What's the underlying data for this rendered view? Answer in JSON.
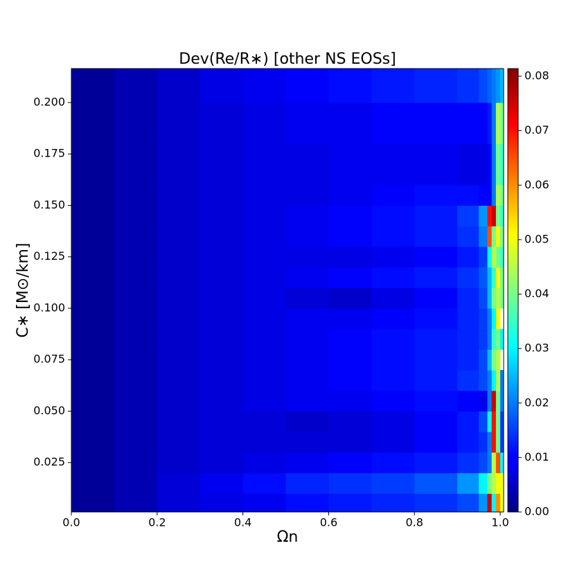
{
  "chart_data": {
    "type": "heatmap",
    "title": "Dev(Re/R∗) [other NS EOSs]",
    "x_label": "Ωn",
    "y_label": "C∗ [M⊙/km]",
    "colormap": "jet",
    "x_edges": [
      0,
      0.1,
      0.2,
      0.3,
      0.4,
      0.5,
      0.6,
      0.7,
      0.8,
      0.9,
      0.95,
      0.97,
      0.98,
      0.99,
      1.0,
      1.008
    ],
    "y_edges": [
      0.001,
      0.01,
      0.02,
      0.03,
      0.04,
      0.05,
      0.06,
      0.07,
      0.08,
      0.09,
      0.1,
      0.11,
      0.12,
      0.13,
      0.14,
      0.15,
      0.16,
      0.18,
      0.2,
      0.2165
    ],
    "values": [
      [
        0.002,
        0.004,
        0.007,
        0.008,
        0.009,
        0.011,
        0.012,
        0.013,
        0.014,
        0.016,
        0.022,
        0.075,
        0.03,
        0.06,
        0.05
      ],
      [
        0.002,
        0.004,
        0.007,
        0.009,
        0.011,
        0.013,
        0.014,
        0.015,
        0.017,
        0.022,
        0.03,
        0.04,
        0.045,
        0.05,
        0.05
      ],
      [
        0.002,
        0.004,
        0.006,
        0.007,
        0.008,
        0.009,
        0.01,
        0.011,
        0.012,
        0.014,
        0.016,
        0.02,
        0.045,
        0.065,
        0.03
      ],
      [
        0.002,
        0.004,
        0.006,
        0.007,
        0.007,
        0.007,
        0.007,
        0.008,
        0.01,
        0.012,
        0.014,
        0.02,
        0.07,
        0.04,
        0.015
      ],
      [
        0.002,
        0.004,
        0.006,
        0.007,
        0.007,
        0.006,
        0.007,
        0.008,
        0.01,
        0.012,
        0.016,
        0.03,
        0.07,
        0.04,
        0.015
      ],
      [
        0.002,
        0.004,
        0.006,
        0.007,
        0.008,
        0.009,
        0.009,
        0.01,
        0.011,
        0.01,
        0.009,
        0.02,
        0.075,
        0.04,
        0.02
      ],
      [
        0.002,
        0.004,
        0.006,
        0.007,
        0.008,
        0.009,
        0.01,
        0.011,
        0.012,
        0.014,
        0.016,
        0.02,
        0.03,
        0.045,
        0.02
      ],
      [
        0.002,
        0.004,
        0.006,
        0.007,
        0.008,
        0.009,
        0.01,
        0.011,
        0.012,
        0.013,
        0.016,
        0.025,
        0.04,
        0.045,
        null
      ],
      [
        0.002,
        0.004,
        0.006,
        0.007,
        0.008,
        0.009,
        0.01,
        0.011,
        0.012,
        0.013,
        0.015,
        0.02,
        0.035,
        0.04,
        0.03
      ],
      [
        0.002,
        0.004,
        0.006,
        0.007,
        0.008,
        0.009,
        0.009,
        0.01,
        0.011,
        0.013,
        0.015,
        0.02,
        0.03,
        0.05,
        null
      ],
      [
        0.002,
        0.004,
        0.006,
        0.007,
        0.008,
        0.007,
        0.006,
        0.008,
        0.01,
        0.013,
        0.016,
        0.025,
        0.04,
        0.045,
        0.04
      ],
      [
        0.002,
        0.004,
        0.006,
        0.007,
        0.008,
        0.009,
        0.01,
        0.011,
        0.012,
        0.014,
        0.017,
        0.025,
        0.035,
        0.05,
        0.04
      ],
      [
        0.002,
        0.004,
        0.006,
        0.007,
        0.008,
        0.008,
        0.008,
        0.009,
        0.01,
        0.012,
        0.015,
        0.03,
        0.045,
        0.04,
        0.035
      ],
      [
        0.002,
        0.004,
        0.006,
        0.007,
        0.008,
        0.009,
        0.01,
        0.011,
        0.012,
        0.014,
        0.02,
        0.065,
        0.04,
        0.05,
        0.04
      ],
      [
        0.002,
        0.004,
        0.006,
        0.007,
        0.008,
        0.009,
        0.01,
        0.011,
        0.012,
        0.015,
        0.022,
        0.07,
        0.075,
        0.04,
        0.035
      ],
      [
        0.002,
        0.004,
        0.006,
        0.007,
        0.008,
        0.008,
        0.009,
        0.01,
        0.011,
        0.011,
        0.01,
        0.01,
        0.02,
        0.045,
        0.04
      ],
      [
        0.002,
        0.004,
        0.006,
        0.007,
        0.008,
        0.008,
        0.009,
        0.009,
        0.009,
        0.008,
        0.008,
        0.01,
        0.02,
        0.04,
        0.035
      ],
      [
        0.002,
        0.004,
        0.006,
        0.007,
        0.008,
        0.009,
        0.009,
        0.01,
        0.01,
        0.01,
        0.01,
        0.012,
        0.02,
        0.045,
        0.04
      ],
      [
        0.002,
        0.004,
        0.006,
        0.008,
        0.009,
        0.01,
        0.011,
        0.012,
        0.013,
        0.014,
        0.016,
        0.018,
        0.02,
        0.022,
        0.025
      ]
    ],
    "xlim": [
      0,
      1.008
    ],
    "ylim": [
      0.001,
      0.2165
    ],
    "clim": [
      0,
      0.0814
    ],
    "xticks": [
      {
        "value": 0,
        "label": "0.0"
      },
      0.2,
      0.4,
      0.6,
      0.8,
      {
        "value": 1,
        "label": "1.0"
      }
    ],
    "yticks": [
      0.025,
      {
        "value": 0.05,
        "label": "0.050"
      },
      0.075,
      {
        "value": 0.1,
        "label": "0.100"
      },
      0.125,
      {
        "value": 0.15,
        "label": "0.150"
      },
      0.175,
      {
        "value": 0.2,
        "label": "0.200"
      }
    ],
    "cticks": [
      {
        "value": 0,
        "label": "0.00"
      },
      0.01,
      0.02,
      0.03,
      0.04,
      0.05,
      0.06,
      0.07,
      0.08
    ]
  }
}
